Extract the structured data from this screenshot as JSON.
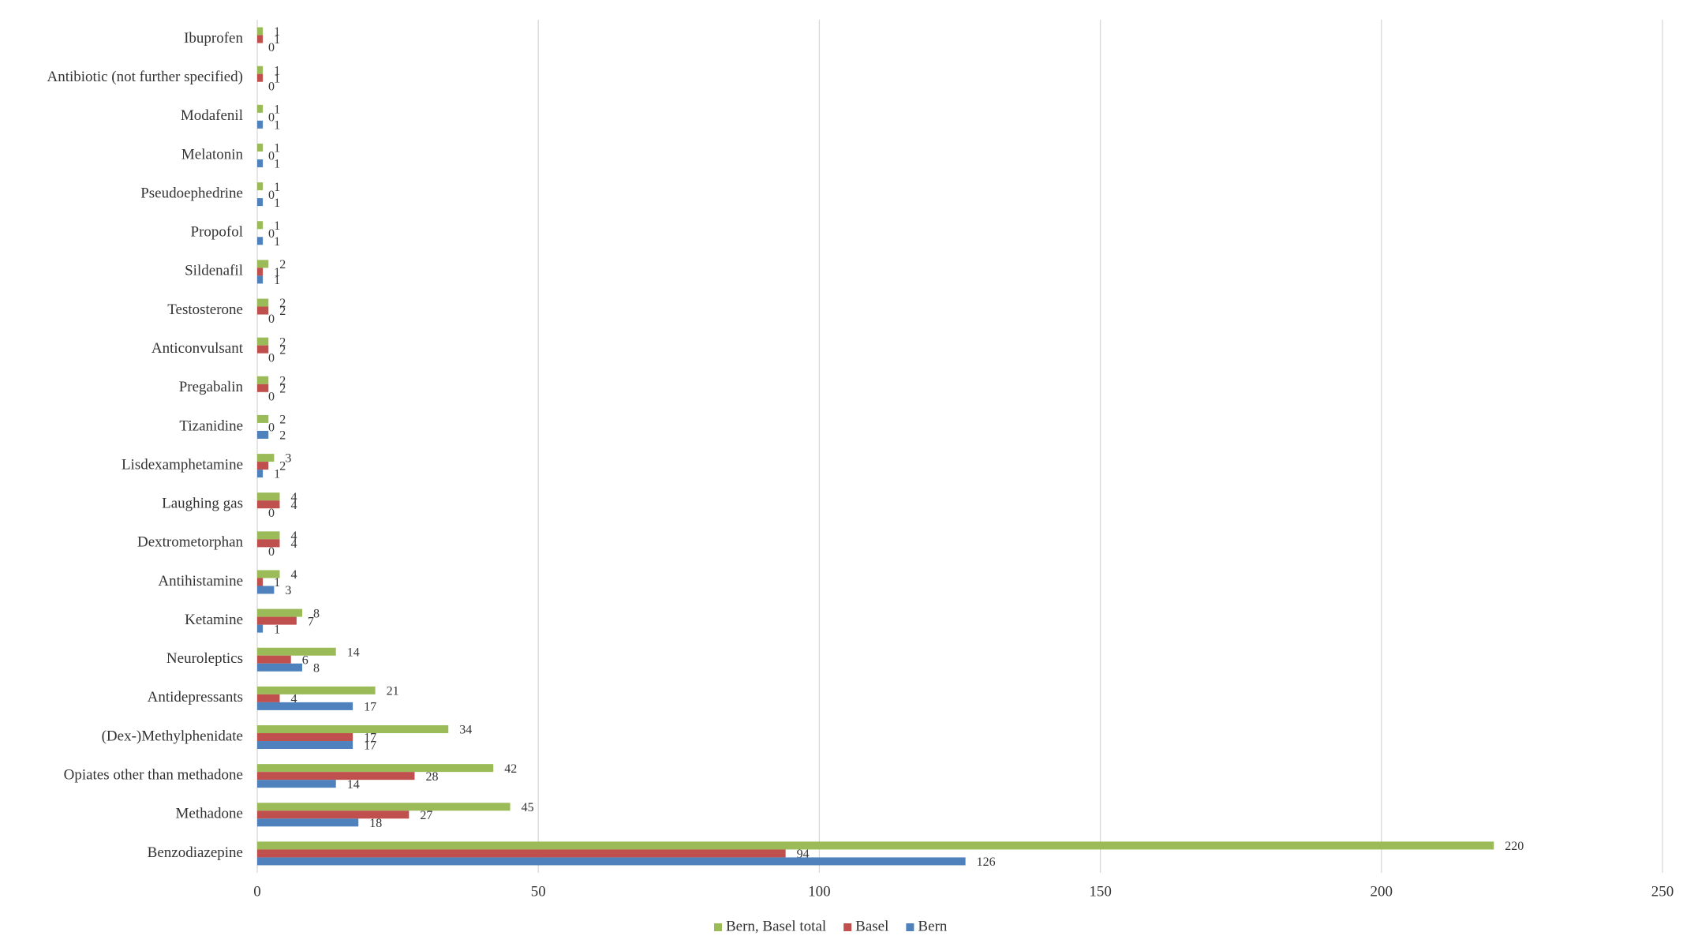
{
  "chart_data": {
    "type": "hbar",
    "categories": [
      "Ibuprofen",
      "Antibiotic (not further specified)",
      "Modafenil",
      "Melatonin",
      "Pseudoephedrine",
      "Propofol",
      "Sildenafil",
      "Testosterone",
      "Anticonvulsant",
      "Pregabalin",
      "Tizanidine",
      "Lisdexamphetamine",
      "Laughing gas",
      "Dextrometorphan",
      "Antihistamine",
      "Ketamine",
      "Neuroleptics",
      "Antidepressants",
      "(Dex-)Methylphenidate",
      "Opiates other than methadone",
      "Methadone",
      "Benzodiazepine"
    ],
    "series": [
      {
        "name": "Bern, Basel total",
        "color": "#9bbb59",
        "values": [
          1,
          1,
          1,
          1,
          1,
          1,
          2,
          2,
          2,
          2,
          2,
          3,
          4,
          4,
          4,
          8,
          14,
          21,
          34,
          42,
          45,
          220
        ]
      },
      {
        "name": "Basel",
        "color": "#c0504d",
        "values": [
          1,
          1,
          0,
          0,
          0,
          0,
          1,
          2,
          2,
          2,
          0,
          2,
          4,
          4,
          1,
          7,
          6,
          4,
          17,
          28,
          27,
          94
        ]
      },
      {
        "name": "Bern",
        "color": "#4f81bd",
        "values": [
          0,
          0,
          1,
          1,
          1,
          1,
          1,
          0,
          0,
          0,
          2,
          1,
          0,
          0,
          3,
          1,
          8,
          17,
          17,
          14,
          18,
          126
        ]
      }
    ],
    "xlim": [
      0,
      250
    ],
    "xticks": [
      0,
      50,
      100,
      150,
      200,
      250
    ],
    "grid": true,
    "legend": "bottom"
  }
}
